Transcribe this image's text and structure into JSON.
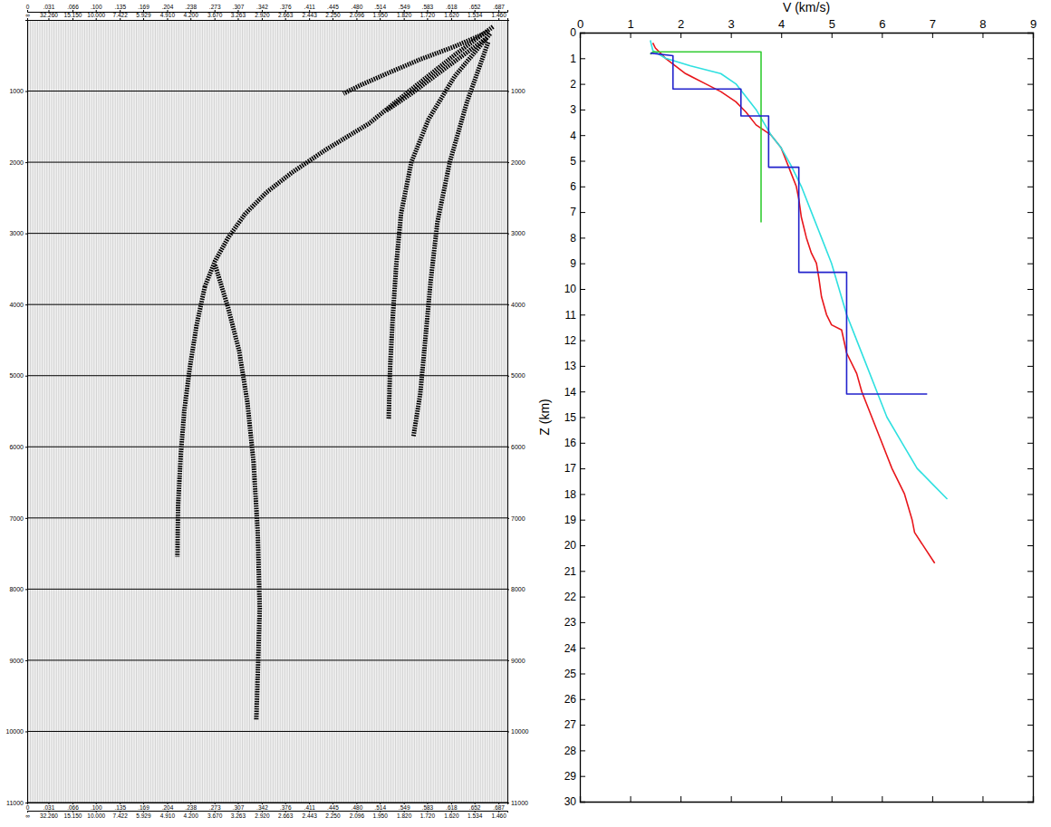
{
  "chart_data": [
    {
      "type": "line",
      "xlim": [
        0,
        0.7
      ],
      "ylim": [
        0,
        11000
      ],
      "xticks": [
        0,
        {
          "value": 0.031,
          "label": ".031"
        },
        {
          "value": 0.066,
          "label": ".066"
        },
        {
          "value": 0.1,
          "label": ".100"
        },
        {
          "value": 0.135,
          "label": ".135"
        },
        {
          "value": 0.169,
          "label": ".169"
        },
        {
          "value": 0.204,
          "label": ".204"
        },
        {
          "value": 0.238,
          "label": ".238"
        },
        {
          "value": 0.273,
          "label": ".273"
        },
        {
          "value": 0.307,
          "label": ".307"
        },
        {
          "value": 0.342,
          "label": ".342"
        },
        {
          "value": 0.376,
          "label": ".376"
        },
        {
          "value": 0.411,
          "label": ".411"
        },
        {
          "value": 0.445,
          "label": ".445"
        },
        {
          "value": 0.48,
          "label": ".480"
        },
        {
          "value": 0.514,
          "label": ".514"
        },
        {
          "value": 0.549,
          "label": ".549"
        },
        {
          "value": 0.583,
          "label": ".583"
        },
        {
          "value": 0.618,
          "label": ".618"
        },
        {
          "value": 0.652,
          "label": ".652"
        },
        {
          "value": 0.687,
          "label": ".687"
        }
      ],
      "x2ticks": [
        {
          "value": 0,
          "label": "∞"
        },
        {
          "value": 0.031,
          "label": "32.260"
        },
        {
          "value": 0.066,
          "label": "15.150"
        },
        {
          "value": 0.1,
          "label": "10.000"
        },
        {
          "value": 0.135,
          "label": "7.422"
        },
        {
          "value": 0.169,
          "label": "5.929"
        },
        {
          "value": 0.204,
          "label": "4.910"
        },
        {
          "value": 0.238,
          "label": "4.200"
        },
        {
          "value": 0.273,
          "label": "3.670"
        },
        {
          "value": 0.307,
          "label": "3.263"
        },
        {
          "value": 0.342,
          "label": "2.920"
        },
        {
          "value": 0.376,
          "label": "2.663"
        },
        {
          "value": 0.411,
          "label": "2.443"
        },
        {
          "value": 0.445,
          "label": "2.250"
        },
        {
          "value": 0.48,
          "label": "2.096"
        },
        {
          "value": 0.514,
          "label": "1.950"
        },
        {
          "value": 0.549,
          "label": "1.820"
        },
        {
          "value": 0.583,
          "label": "1.720"
        },
        {
          "value": 0.618,
          "label": "1.620"
        },
        {
          "value": 0.652,
          "label": "1.534"
        },
        {
          "value": 0.687,
          "label": "1.460"
        }
      ],
      "yticks": [
        1000,
        2000,
        3000,
        4000,
        5000,
        6000,
        7000,
        8000,
        9000,
        10000,
        11000
      ],
      "grid": true,
      "line_style": "dashed",
      "color": "#000000",
      "series": [
        {
          "x": [
            0.679,
            0.623,
            0.56,
            0.498,
            0.436,
            0.386,
            0.349,
            0.318,
            0.293,
            0.274,
            0.259
          ],
          "values": [
            96,
            494,
            976,
            1458,
            1820,
            2145,
            2422,
            2723,
            3061,
            3386,
            3747
          ]
        },
        {
          "x": [
            0.259,
            0.247,
            0.237,
            0.229,
            0.224,
            0.22,
            0.219
          ],
          "values": [
            3747,
            4290,
            4892,
            5494,
            6097,
            6820,
            7543
          ]
        },
        {
          "x": [
            0.274,
            0.293,
            0.309,
            0.321,
            0.33,
            0.336,
            0.339,
            0.336,
            0.334
          ],
          "values": [
            3446,
            4049,
            4651,
            5374,
            6218,
            7182,
            8266,
            9230,
            9833
          ]
        },
        {
          "x": [
            0.675,
            0.623,
            0.585,
            0.56,
            0.545,
            0.538,
            0.533,
            0.529,
            0.527
          ],
          "values": [
            193,
            795,
            1398,
            2000,
            2723,
            3446,
            4169,
            4892,
            5615
          ]
        },
        {
          "x": [
            0.672,
            0.641,
            0.616,
            0.598,
            0.588,
            0.58,
            0.573,
            0.563
          ],
          "values": [
            313,
            1157,
            2000,
            2844,
            3687,
            4531,
            5254,
            5856
          ]
        },
        {
          "x": [
            0.672,
            0.623,
            0.573,
            0.529,
            0.486,
            0.461
          ],
          "values": [
            169,
            374,
            554,
            735,
            916,
            1036
          ]
        },
        {
          "x": [
            0.67,
            0.61,
            0.56,
            0.523
          ],
          "values": [
            253,
            675,
            1036,
            1277
          ]
        }
      ]
    },
    {
      "type": "line",
      "xlabel": "V (km/s)",
      "ylabel": "Z (km)",
      "xlim": [
        0,
        9
      ],
      "ylim": [
        0,
        30
      ],
      "xticks": [
        0,
        1,
        2,
        3,
        4,
        5,
        6,
        7,
        8,
        9
      ],
      "yticks": [
        0,
        1,
        2,
        3,
        4,
        5,
        6,
        7,
        8,
        9,
        10,
        11,
        12,
        13,
        14,
        15,
        16,
        17,
        18,
        19,
        20,
        21,
        22,
        23,
        24,
        25,
        26,
        27,
        28,
        29,
        30
      ],
      "grid": false,
      "line_style": "solid",
      "series": [
        {
          "color": "#e8161b",
          "x": [
            1.45,
            1.5,
            1.6,
            1.7,
            1.9,
            2.1,
            2.5,
            2.8,
            3.1,
            3.3,
            3.5,
            3.8,
            4.0,
            4.1,
            4.2,
            4.3,
            4.35,
            4.4,
            4.5,
            4.6,
            4.7,
            4.75,
            4.8,
            4.9,
            5.0,
            5.2,
            5.3,
            5.5,
            5.6,
            5.8,
            6.0,
            6.2,
            6.45,
            6.6,
            6.65,
            7.05
          ],
          "values": [
            0.4,
            0.6,
            0.8,
            1.0,
            1.3,
            1.6,
            2.0,
            2.3,
            2.7,
            3.1,
            3.6,
            4.0,
            4.5,
            5.0,
            5.5,
            6.0,
            6.5,
            7.2,
            8.0,
            8.6,
            9.0,
            9.6,
            10.3,
            11.0,
            11.4,
            11.6,
            12.5,
            13.3,
            14.0,
            15.0,
            16.0,
            17.0,
            18.0,
            19.0,
            19.5,
            20.7
          ]
        },
        {
          "color": "#2fe0e0",
          "x": [
            1.4,
            1.45,
            1.7,
            2.2,
            2.8,
            3.1,
            3.3,
            3.5,
            3.65,
            3.8,
            4.0,
            4.2,
            4.4,
            4.6,
            4.8,
            5.0,
            5.15,
            5.3,
            5.5,
            5.7,
            5.9,
            6.1,
            6.4,
            6.7,
            7.0,
            7.3
          ],
          "values": [
            0.3,
            0.7,
            1.0,
            1.3,
            1.6,
            2.0,
            2.5,
            3.0,
            3.5,
            4.0,
            4.5,
            5.2,
            6.0,
            7.0,
            8.0,
            9.0,
            10.0,
            11.0,
            12.0,
            13.0,
            14.0,
            15.0,
            16.0,
            17.0,
            17.6,
            18.2
          ]
        },
        {
          "color": "#33cc33",
          "x": [
            1.4,
            1.45,
            3.6,
            3.6
          ],
          "values": [
            0.85,
            0.75,
            0.75,
            7.4
          ]
        },
        {
          "color": "#2222cc",
          "x": [
            1.4,
            1.85,
            1.85,
            3.2,
            3.2,
            3.75,
            3.75,
            4.35,
            4.35,
            5.3,
            5.3,
            6.9
          ],
          "values": [
            0.8,
            0.9,
            2.2,
            2.2,
            3.25,
            3.25,
            5.25,
            5.25,
            9.35,
            9.35,
            14.1,
            14.1
          ]
        }
      ]
    }
  ]
}
